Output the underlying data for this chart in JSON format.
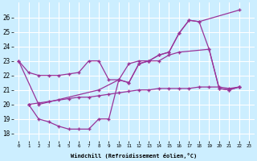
{
  "xlabel": "Windchill (Refroidissement éolien,°C)",
  "bg_color": "#cceeff",
  "line_color": "#993399",
  "grid_color": "#ffffff",
  "x_labels": [
    "0",
    "1",
    "2",
    "3",
    "4",
    "5",
    "6",
    "7",
    "8",
    "9",
    "10",
    "11",
    "12",
    "13",
    "14",
    "15",
    "16",
    "17",
    "18",
    "19",
    "20",
    "21",
    "22",
    "23"
  ],
  "line1_x": [
    0,
    1,
    2,
    3,
    4,
    5,
    6,
    7,
    8,
    9,
    10,
    11,
    12,
    13,
    14,
    15,
    16,
    19,
    20,
    21,
    22
  ],
  "line1_y": [
    23,
    22.2,
    22.0,
    22.0,
    22.0,
    22.1,
    22.2,
    23.0,
    23.0,
    21.7,
    21.7,
    22.8,
    23.0,
    23.0,
    23.0,
    23.4,
    23.6,
    23.8,
    21.1,
    21.0,
    21.2
  ],
  "line2_x": [
    1,
    2,
    3,
    4,
    5,
    6,
    7,
    8,
    9,
    10,
    11,
    12,
    13,
    14,
    15,
    16,
    17,
    18,
    19,
    20,
    21,
    22
  ],
  "line2_y": [
    20.0,
    19.0,
    18.8,
    18.5,
    18.3,
    18.3,
    18.3,
    19.0,
    19.0,
    21.7,
    21.5,
    22.8,
    23.0,
    23.4,
    23.6,
    24.9,
    25.8,
    25.7,
    23.8,
    21.1,
    21.0,
    21.2
  ],
  "line3_x": [
    0,
    2,
    8,
    10,
    11,
    12,
    13,
    14,
    15,
    16,
    17,
    18,
    22
  ],
  "line3_y": [
    23,
    20.0,
    21.0,
    21.7,
    21.5,
    22.8,
    23.0,
    23.4,
    23.6,
    24.9,
    25.8,
    25.7,
    26.5
  ],
  "line4_x": [
    1,
    2,
    3,
    4,
    5,
    6,
    7,
    8,
    9,
    10,
    11,
    12,
    13,
    14,
    15,
    16,
    17,
    18,
    19,
    20,
    21,
    22
  ],
  "line4_y": [
    20.0,
    20.1,
    20.2,
    20.3,
    20.4,
    20.5,
    20.5,
    20.6,
    20.7,
    20.8,
    20.9,
    21.0,
    21.0,
    21.1,
    21.1,
    21.1,
    21.1,
    21.2,
    21.2,
    21.2,
    21.1,
    21.2
  ],
  "ylim": [
    17.5,
    27.0
  ],
  "yticks": [
    18,
    19,
    20,
    21,
    22,
    23,
    24,
    25,
    26
  ]
}
